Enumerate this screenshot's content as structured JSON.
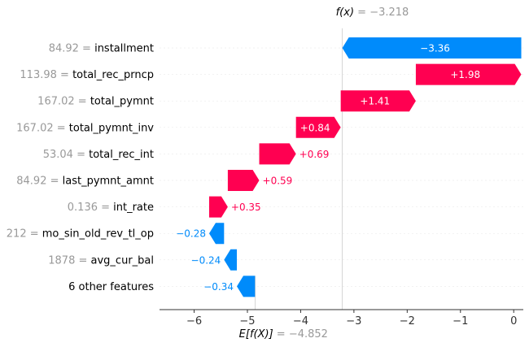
{
  "chart_data": {
    "type": "waterfall",
    "fx": {
      "label": "f(x)",
      "value": "−3.218",
      "numeric": -3.218
    },
    "base": {
      "label": "E[f(X)]",
      "value": "−4.852",
      "numeric": -4.852
    },
    "xlim": [
      -6.65,
      0.18
    ],
    "ticks": [
      {
        "v": -6,
        "label": "−6"
      },
      {
        "v": -5,
        "label": "−5"
      },
      {
        "v": -4,
        "label": "−4"
      },
      {
        "v": -3,
        "label": "−3"
      },
      {
        "v": -2,
        "label": "−2"
      },
      {
        "v": -1,
        "label": "−1"
      },
      {
        "v": 0,
        "label": "0"
      }
    ],
    "features": [
      {
        "name": "installment",
        "value": "84.92",
        "shap": -3.36,
        "label": "−3.36"
      },
      {
        "name": "total_rec_prncp",
        "value": "113.98",
        "shap": 1.98,
        "label": "+1.98"
      },
      {
        "name": "total_pymnt",
        "value": "167.02",
        "shap": 1.41,
        "label": "+1.41"
      },
      {
        "name": "total_pymnt_inv",
        "value": "167.02",
        "shap": 0.84,
        "label": "+0.84"
      },
      {
        "name": "total_rec_int",
        "value": "53.04",
        "shap": 0.69,
        "label": "+0.69"
      },
      {
        "name": "last_pymnt_amnt",
        "value": "84.92",
        "shap": 0.59,
        "label": "+0.59"
      },
      {
        "name": "int_rate",
        "value": "0.136",
        "shap": 0.35,
        "label": "+0.35"
      },
      {
        "name": "mo_sin_old_rev_tl_op",
        "value": "212",
        "shap": -0.28,
        "label": "−0.28"
      },
      {
        "name": "avg_cur_bal",
        "value": "1878",
        "shap": -0.24,
        "label": "−0.24"
      },
      {
        "name": "6 other features",
        "value": "",
        "shap": -0.34,
        "label": "−0.34"
      }
    ],
    "colors": {
      "positive": "#ff0051",
      "negative": "#008bfb",
      "muted": "#999999"
    }
  }
}
